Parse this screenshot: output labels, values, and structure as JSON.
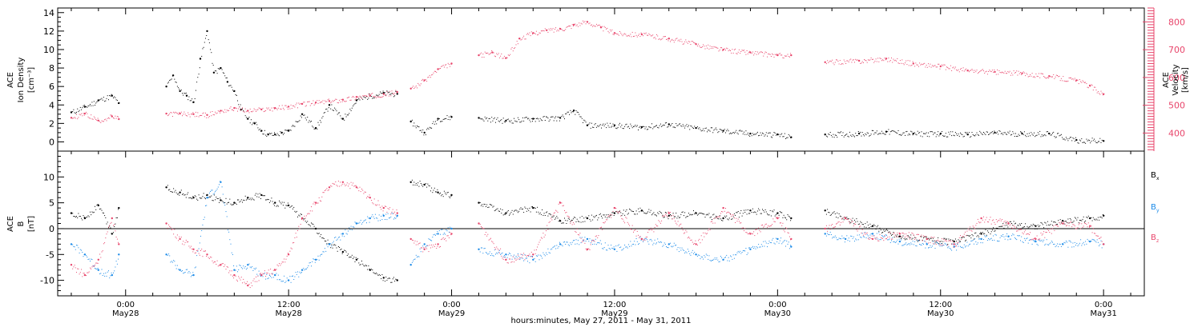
{
  "chart_data": [
    {
      "type": "scatter",
      "panel": "top",
      "ylabel_left_lines": [
        "ACE",
        "Ion Density",
        "[cm⁻³]"
      ],
      "ylabel_right_lines": [
        "ACE",
        "Velocity",
        "[km/s]"
      ],
      "ylim_left": [
        -1,
        14.5
      ],
      "ylim_right": [
        335,
        850
      ],
      "left_ticks": [
        0,
        2,
        4,
        6,
        8,
        10,
        12,
        14
      ],
      "right_ticks": [
        400,
        500,
        600,
        700,
        800
      ],
      "series": [
        {
          "color": "#000000",
          "axis": "left",
          "segments": [
            {
              "x": [
                -4,
                -3,
                -2,
                -1,
                -0.5
              ],
              "y": [
                3.2,
                3.8,
                4.5,
                5.0,
                4.2
              ]
            },
            {
              "x": [
                3,
                3.5,
                4,
                4.5,
                5,
                5.5,
                6,
                6.5,
                7,
                7.5,
                8,
                8.5,
                9,
                9.5,
                10,
                10.5,
                11,
                11.5,
                12,
                13,
                14,
                15,
                16,
                17,
                18,
                19,
                20
              ],
              "y": [
                6.0,
                7.2,
                5.5,
                5.0,
                4.3,
                9.0,
                12.0,
                7.5,
                8.0,
                6.5,
                5.5,
                3.5,
                2.5,
                2.0,
                1.2,
                0.8,
                0.8,
                1.0,
                1.2,
                3.0,
                1.5,
                4.0,
                2.5,
                4.5,
                5.0,
                5.3,
                5.2
              ]
            },
            {
              "x": [
                21,
                22,
                23,
                24
              ],
              "y": [
                2.2,
                1.0,
                2.5,
                2.7
              ]
            },
            {
              "x": [
                26,
                28,
                30,
                32,
                33,
                34,
                36,
                38,
                40,
                42,
                44,
                46,
                48,
                49
              ],
              "y": [
                2.6,
                2.3,
                2.5,
                2.6,
                3.4,
                1.8,
                1.8,
                1.6,
                1.9,
                1.5,
                1.2,
                0.9,
                0.8,
                0.5
              ]
            },
            {
              "x": [
                51.5,
                54,
                56,
                58,
                60,
                62,
                64,
                66,
                68,
                70,
                72
              ],
              "y": [
                0.8,
                0.9,
                1.1,
                0.9,
                0.9,
                0.8,
                1.0,
                0.9,
                0.9,
                0.2,
                0.1
              ]
            }
          ]
        },
        {
          "color": "#e8456b",
          "axis": "right",
          "segments": [
            {
              "x": [
                -4,
                -3,
                -2,
                -1,
                -0.5
              ],
              "y": [
                455,
                470,
                445,
                460,
                450
              ]
            },
            {
              "x": [
                3,
                4,
                5,
                6,
                7,
                8,
                9,
                10,
                11,
                12,
                13,
                14,
                15,
                16,
                17,
                18,
                19,
                20
              ],
              "y": [
                470,
                470,
                468,
                465,
                480,
                490,
                480,
                485,
                490,
                495,
                505,
                510,
                515,
                520,
                530,
                535,
                540,
                548
              ]
            },
            {
              "x": [
                21,
                22,
                23,
                24
              ],
              "y": [
                560,
                590,
                630,
                650
              ]
            },
            {
              "x": [
                26,
                27,
                28,
                29,
                30,
                31,
                32,
                33,
                34,
                35,
                36,
                38,
                40,
                42,
                44,
                46,
                48,
                49
              ],
              "y": [
                680,
                690,
                670,
                740,
                760,
                770,
                775,
                790,
                800,
                780,
                760,
                755,
                740,
                720,
                700,
                690,
                680,
                680
              ]
            },
            {
              "x": [
                51.5,
                54,
                56,
                58,
                60,
                62,
                64,
                66,
                68,
                70,
                71,
                72
              ],
              "y": [
                655,
                660,
                668,
                650,
                640,
                625,
                620,
                615,
                605,
                590,
                570,
                540
              ]
            }
          ]
        }
      ]
    },
    {
      "type": "scatter",
      "panel": "bottom",
      "ylabel_lines": [
        "ACE",
        "B",
        "[nT]"
      ],
      "ylim": [
        -13,
        15
      ],
      "ticks": [
        -10,
        -5,
        0,
        5,
        10
      ],
      "zero_line": true,
      "series": [
        {
          "name": "Bx",
          "legend_main": "B",
          "legend_sub": "x",
          "color": "#000000",
          "segments": [
            {
              "x": [
                -4,
                -3,
                -2,
                -1,
                -0.5
              ],
              "y": [
                3.0,
                2.0,
                4.5,
                -1.0,
                4.0
              ]
            },
            {
              "x": [
                3,
                4,
                5,
                6,
                7,
                8,
                9,
                10,
                11,
                12,
                13,
                14,
                15,
                16,
                17,
                18,
                19,
                20
              ],
              "y": [
                8.0,
                7.0,
                6.0,
                6.5,
                5.5,
                5.0,
                6.0,
                6.5,
                5.0,
                4.5,
                2.0,
                0.0,
                -3.0,
                -4.5,
                -6.0,
                -8.0,
                -9.5,
                -10.0
              ]
            },
            {
              "x": [
                21,
                22,
                23,
                24
              ],
              "y": [
                9.0,
                8.5,
                7.0,
                6.5
              ]
            },
            {
              "x": [
                26,
                28,
                30,
                32,
                34,
                36,
                38,
                40,
                42,
                44,
                46,
                48,
                49
              ],
              "y": [
                5.0,
                3.0,
                4.0,
                1.5,
                2.0,
                3.0,
                3.5,
                2.5,
                3.0,
                2.0,
                3.5,
                3.0,
                2.0
              ]
            },
            {
              "x": [
                51.5,
                53,
                55,
                57,
                59,
                61,
                63,
                65,
                67,
                69,
                71,
                72
              ],
              "y": [
                3.5,
                2.0,
                0.5,
                -1.5,
                -2.0,
                -2.5,
                -1.0,
                1.0,
                0.5,
                1.5,
                2.0,
                2.5
              ]
            }
          ]
        },
        {
          "name": "By",
          "legend_main": "B",
          "legend_sub": "y",
          "color": "#1a8ae8",
          "segments": [
            {
              "x": [
                -4,
                -3,
                -2,
                -1,
                -0.5
              ],
              "y": [
                -3.0,
                -5.0,
                -8.0,
                -9.0,
                -5.0
              ]
            },
            {
              "x": [
                3,
                4,
                5,
                6,
                7,
                8,
                9,
                10,
                11,
                12,
                13,
                14,
                15,
                16,
                17,
                18,
                19,
                20
              ],
              "y": [
                -5.0,
                -8.0,
                -9.0,
                6.0,
                9.0,
                -8.0,
                -7.0,
                -9.0,
                -9.0,
                -10.0,
                -8.0,
                -6.0,
                -3.0,
                -1.0,
                1.0,
                2.0,
                2.5,
                2.5
              ]
            },
            {
              "x": [
                21,
                22,
                23,
                24
              ],
              "y": [
                -7.0,
                -3.0,
                -1.0,
                0.0
              ]
            },
            {
              "x": [
                26,
                28,
                30,
                32,
                34,
                36,
                38,
                40,
                42,
                44,
                46,
                48,
                49
              ],
              "y": [
                -4.0,
                -5.0,
                -6.0,
                -3.0,
                -2.0,
                -4.0,
                -2.0,
                -3.0,
                -5.0,
                -6.0,
                -4.0,
                -2.0,
                -3.5
              ]
            },
            {
              "x": [
                51.5,
                53,
                55,
                57,
                59,
                61,
                63,
                65,
                67,
                69,
                71,
                72
              ],
              "y": [
                -1.0,
                -2.0,
                -1.0,
                -2.5,
                -3.0,
                -3.5,
                -2.0,
                -1.5,
                -2.5,
                -3.0,
                -2.5,
                -3.0
              ]
            }
          ]
        },
        {
          "name": "Bz",
          "legend_main": "B",
          "legend_sub": "z",
          "color": "#e8456b",
          "segments": [
            {
              "x": [
                -4,
                -3,
                -2,
                -1,
                -0.5
              ],
              "y": [
                -7.0,
                -9.0,
                -6.0,
                2.0,
                -3.0
              ]
            },
            {
              "x": [
                3,
                4,
                5,
                6,
                7,
                8,
                9,
                10,
                11,
                12,
                13,
                14,
                15,
                16,
                17,
                18,
                19,
                20
              ],
              "y": [
                1.0,
                -2.0,
                -4.0,
                -5.0,
                -7.0,
                -9.0,
                -11.0,
                -9.0,
                -8.0,
                -5.0,
                2.0,
                5.0,
                8.0,
                9.0,
                8.0,
                6.0,
                4.0,
                3.0
              ]
            },
            {
              "x": [
                21,
                22,
                23,
                24
              ],
              "y": [
                -2.0,
                -4.0,
                -3.0,
                -1.0
              ]
            },
            {
              "x": [
                26,
                28,
                30,
                32,
                34,
                36,
                38,
                40,
                42,
                44,
                46,
                48,
                49
              ],
              "y": [
                1.0,
                -6.0,
                -5.0,
                5.0,
                -4.0,
                4.0,
                -2.0,
                3.0,
                -3.0,
                4.0,
                -1.0,
                2.0,
                -2.0
              ]
            },
            {
              "x": [
                51.5,
                53,
                55,
                57,
                59,
                61,
                63,
                65,
                67,
                69,
                71,
                72
              ],
              "y": [
                0.0,
                2.0,
                -2.0,
                -1.0,
                -2.0,
                -3.0,
                2.0,
                1.0,
                -2.0,
                1.0,
                0.5,
                -3.0
              ]
            }
          ]
        }
      ]
    }
  ],
  "xaxis": {
    "xlim": [
      -5,
      75
    ],
    "ticks": [
      0,
      12,
      24,
      36,
      48,
      60,
      72
    ],
    "tick_labels": [
      {
        "time": "0:00",
        "date": "May28"
      },
      {
        "time": "12:00",
        "date": "May28"
      },
      {
        "time": "0:00",
        "date": "May29"
      },
      {
        "time": "12:00",
        "date": "May29"
      },
      {
        "time": "0:00",
        "date": "May30"
      },
      {
        "time": "12:00",
        "date": "May30"
      },
      {
        "time": "0:00",
        "date": "May31"
      }
    ],
    "caption": "hours:minutes, May 27, 2011 - May 31, 2011"
  },
  "colors": {
    "density": "#000000",
    "velocity": "#e8456b",
    "bx": "#000000",
    "by": "#1a8ae8",
    "bz": "#e8456b",
    "axis": "#000000"
  }
}
